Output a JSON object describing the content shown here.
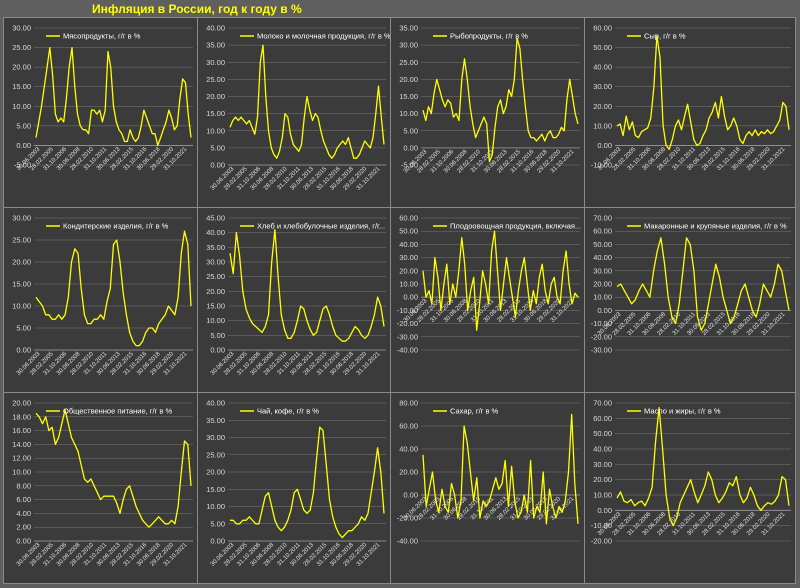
{
  "page_title": "Инфляция в России, год к году в %",
  "colors": {
    "line": "#ffff00",
    "panel": "#3b3b3b",
    "grid": "#7a7a7a",
    "background": "#5f5f5f"
  },
  "chart_data": [
    {
      "type": "line",
      "legend": "Мясопродукты, г/г в %",
      "ylim": [
        -5,
        30
      ],
      "step": 5,
      "xticks": [
        "30.06.2003",
        "28.02.2005",
        "31.10.2006",
        "30.06.2008",
        "28.02.2010",
        "31.10.2011",
        "30.06.2013",
        "28.02.2015",
        "31.10.2016",
        "30.06.2018",
        "29.02.2020",
        "31.10.2021"
      ],
      "series": [
        {
          "values": [
            2,
            6,
            10,
            15,
            20,
            25,
            18,
            8,
            6,
            7,
            6,
            12,
            20,
            25,
            15,
            8,
            5,
            4,
            4,
            3,
            9,
            9,
            8,
            9,
            6,
            9,
            24,
            20,
            10,
            6,
            4,
            3,
            1,
            1,
            4,
            2,
            1,
            2,
            5,
            9,
            7,
            5,
            3,
            3,
            0,
            2,
            4,
            6,
            9,
            7,
            4,
            5,
            12,
            17,
            16,
            8,
            2
          ]
        }
      ]
    },
    {
      "type": "line",
      "legend": "Молоко и молочная продукция, г/г в %",
      "ylim": [
        0,
        40
      ],
      "step": 5,
      "xticks": [
        "30.06.2003",
        "28.02.2005",
        "31.10.2006",
        "30.06.2008",
        "28.02.2010",
        "31.10.2011",
        "30.06.2013",
        "28.02.2015",
        "31.10.2016",
        "30.06.2018",
        "29.02.2020",
        "31.10.2021"
      ],
      "series": [
        {
          "values": [
            11,
            13,
            14,
            13,
            14,
            13,
            12,
            13,
            11,
            9,
            14,
            30,
            35,
            20,
            10,
            5,
            3,
            2,
            4,
            8,
            15,
            14,
            9,
            6,
            5,
            4,
            6,
            14,
            20,
            16,
            13,
            15,
            14,
            10,
            7,
            5,
            3,
            2,
            3,
            5,
            6,
            7,
            6,
            8,
            5,
            2,
            2,
            3,
            5,
            7,
            6,
            5,
            8,
            15,
            23,
            14,
            6
          ]
        }
      ]
    },
    {
      "type": "line",
      "legend": "Рыбопродукты, г/г в %",
      "ylim": [
        -5,
        35
      ],
      "step": 5,
      "xticks": [
        "30.06.2003",
        "28.02.2005",
        "31.10.2006",
        "30.06.2008",
        "28.02.2010",
        "31.10.2011",
        "30.06.2013",
        "28.02.2015",
        "31.10.2016",
        "30.06.2018",
        "29.02.2020",
        "31.10.2021"
      ],
      "series": [
        {
          "values": [
            11,
            8,
            12,
            10,
            16,
            20,
            17,
            14,
            12,
            14,
            13,
            9,
            10,
            8,
            20,
            26,
            20,
            12,
            7,
            3,
            5,
            7,
            9,
            7,
            -4,
            -2,
            6,
            12,
            14,
            10,
            12,
            17,
            15,
            20,
            32,
            29,
            20,
            12,
            5,
            3,
            3,
            2,
            3,
            4,
            2,
            4,
            5,
            3,
            3,
            4,
            6,
            5,
            14,
            20,
            15,
            10,
            7
          ]
        }
      ]
    },
    {
      "type": "line",
      "legend": "Сыр, г/г в %",
      "ylim": [
        -10,
        60
      ],
      "step": 10,
      "xticks": [
        "30.06.2003",
        "28.02.2005",
        "31.10.2006",
        "30.06.2008",
        "28.02.2010",
        "31.10.2011",
        "30.06.2013",
        "28.02.2015",
        "31.10.2016",
        "30.06.2018",
        "29.02.2020",
        "31.10.2021"
      ],
      "series": [
        {
          "values": [
            10,
            11,
            5,
            15,
            8,
            12,
            5,
            4,
            7,
            8,
            9,
            14,
            30,
            56,
            45,
            10,
            0,
            -2,
            3,
            10,
            13,
            8,
            15,
            21,
            12,
            3,
            0,
            1,
            5,
            8,
            14,
            17,
            22,
            14,
            25,
            15,
            8,
            10,
            14,
            10,
            3,
            1,
            5,
            7,
            5,
            8,
            5,
            7,
            6,
            8,
            6,
            7,
            10,
            13,
            22,
            20,
            8
          ]
        }
      ]
    },
    {
      "type": "line",
      "legend": "Кондитерские изделия, г/г в %",
      "ylim": [
        0,
        30
      ],
      "step": 5,
      "xticks": [
        "30.06.2003",
        "28.02.2005",
        "31.10.2006",
        "30.06.2008",
        "28.02.2010",
        "31.10.2011",
        "30.06.2013",
        "28.02.2015",
        "31.10.2016",
        "30.06.2018",
        "29.02.2020",
        "31.10.2021"
      ],
      "series": [
        {
          "values": [
            12,
            11,
            10,
            8,
            8,
            7,
            7,
            8,
            7,
            8,
            12,
            20,
            23,
            22,
            14,
            8,
            6,
            6,
            7,
            7,
            8,
            7,
            11,
            14,
            24,
            25,
            20,
            13,
            8,
            4,
            2,
            1,
            1,
            2,
            4,
            5,
            5,
            4,
            6,
            7,
            8,
            10,
            9,
            8,
            12,
            22,
            27,
            24,
            10
          ]
        }
      ]
    },
    {
      "type": "line",
      "legend": "Хлеб и хлебобулочные изделия, г/г...",
      "ylim": [
        0,
        45
      ],
      "step": 5,
      "xticks": [
        "30.06.2003",
        "28.02.2005",
        "31.10.2006",
        "30.06.2008",
        "28.02.2010",
        "31.10.2011",
        "30.06.2013",
        "28.02.2015",
        "31.10.2016",
        "30.06.2018",
        "29.02.2020",
        "31.10.2021"
      ],
      "series": [
        {
          "values": [
            33,
            26,
            40,
            32,
            20,
            14,
            11,
            9,
            8,
            7,
            6,
            8,
            12,
            30,
            41,
            25,
            12,
            7,
            4,
            4,
            6,
            10,
            15,
            14,
            10,
            7,
            5,
            6,
            10,
            14,
            15,
            12,
            8,
            5,
            4,
            3,
            3,
            4,
            6,
            8,
            7,
            5,
            4,
            5,
            8,
            12,
            18,
            15,
            8
          ]
        }
      ]
    },
    {
      "type": "line",
      "legend": "Плодоовощная продукция, включая...",
      "ylim": [
        -40,
        60
      ],
      "step": 10,
      "xticks": [
        "30.06.2003",
        "28.02.2005",
        "31.10.2006",
        "30.06.2008",
        "28.02.2010",
        "31.10.2011",
        "30.06.2013",
        "28.02.2015",
        "31.10.2016",
        "30.06.2018",
        "29.02.2020",
        "31.10.2021"
      ],
      "series": [
        {
          "values": [
            20,
            0,
            5,
            -5,
            30,
            15,
            -10,
            10,
            25,
            -5,
            10,
            0,
            20,
            45,
            25,
            -10,
            5,
            15,
            -25,
            -5,
            20,
            10,
            -5,
            35,
            50,
            20,
            -10,
            10,
            30,
            15,
            0,
            -15,
            5,
            20,
            30,
            10,
            -10,
            5,
            -5,
            15,
            25,
            5,
            -5,
            10,
            15,
            0,
            -5,
            20,
            35,
            10,
            -5,
            3,
            0
          ]
        }
      ]
    },
    {
      "type": "line",
      "legend": "Макаронные и крупяные изделия, г/г в %",
      "ylim": [
        -30,
        70
      ],
      "step": 10,
      "xticks": [
        "30.06.2003",
        "28.02.2005",
        "31.10.2006",
        "30.06.2008",
        "28.02.2010",
        "31.10.2011",
        "30.06.2013",
        "28.02.2015",
        "31.10.2016",
        "30.06.2018",
        "29.02.2020",
        "31.10.2021"
      ],
      "series": [
        {
          "values": [
            18,
            20,
            15,
            10,
            5,
            8,
            15,
            20,
            15,
            10,
            30,
            45,
            55,
            35,
            10,
            -5,
            -10,
            5,
            30,
            55,
            50,
            30,
            -5,
            -15,
            -10,
            5,
            20,
            35,
            25,
            10,
            0,
            -10,
            -5,
            5,
            15,
            20,
            10,
            0,
            -5,
            5,
            20,
            15,
            10,
            20,
            35,
            30,
            15,
            0
          ]
        }
      ]
    },
    {
      "type": "line",
      "legend": "Общественное питание, г/г в %",
      "ylim": [
        0,
        20
      ],
      "step": 2,
      "xticks": [
        "30.06.2003",
        "28.02.2005",
        "31.10.2006",
        "30.06.2008",
        "28.02.2010",
        "31.10.2011",
        "30.06.2013",
        "28.02.2015",
        "31.10.2016",
        "30.06.2018",
        "29.02.2020",
        "31.10.2021"
      ],
      "series": [
        {
          "values": [
            18.5,
            18,
            17,
            18,
            16,
            16.5,
            14,
            15,
            17,
            19,
            17,
            15,
            14,
            13,
            11,
            9,
            8.5,
            9,
            8,
            7,
            6,
            6.5,
            6.5,
            6.5,
            6.5,
            5.5,
            4,
            6,
            7.5,
            8,
            6.5,
            5,
            4,
            3,
            2.5,
            2,
            2.5,
            3,
            3.5,
            3,
            2.5,
            2.5,
            3,
            2.5,
            5,
            10,
            14.5,
            14,
            8
          ]
        }
      ]
    },
    {
      "type": "line",
      "legend": "Чай, кофе, г/г в %",
      "ylim": [
        0,
        40
      ],
      "step": 5,
      "xticks": [
        "30.06.2003",
        "28.02.2005",
        "31.10.2006",
        "30.06.2008",
        "28.02.2010",
        "31.10.2011",
        "30.06.2013",
        "28.02.2015",
        "31.10.2016",
        "30.06.2018",
        "29.02.2020",
        "31.10.2021"
      ],
      "series": [
        {
          "values": [
            6,
            6,
            5,
            5,
            6,
            6,
            7,
            6,
            5,
            5,
            9,
            13,
            14,
            10,
            6,
            4,
            3,
            4,
            6,
            9,
            14,
            15,
            12,
            9,
            8,
            9,
            14,
            24,
            33,
            32,
            22,
            12,
            7,
            4,
            2,
            1,
            2,
            3,
            3,
            4,
            5,
            7,
            6,
            8,
            14,
            20,
            27,
            20,
            8
          ]
        }
      ]
    },
    {
      "type": "line",
      "legend": "Сахар, г/г в %",
      "ylim": [
        -40,
        80
      ],
      "step": 20,
      "xticks": [
        "30.06.2003",
        "28.02.2005",
        "31.10.2006",
        "30.06.2008",
        "28.02.2010",
        "31.10.2011",
        "30.06.2013",
        "28.02.2015",
        "31.10.2016",
        "30.06.2018",
        "29.02.2020",
        "31.10.2021"
      ],
      "series": [
        {
          "values": [
            35,
            -10,
            5,
            20,
            -5,
            -15,
            5,
            -10,
            -15,
            10,
            0,
            -20,
            -5,
            60,
            45,
            20,
            -5,
            15,
            -20,
            -5,
            -10,
            -5,
            5,
            15,
            5,
            10,
            30,
            -10,
            25,
            -5,
            -20,
            -15,
            0,
            -15,
            30,
            -20,
            -10,
            -15,
            20,
            -25,
            5,
            -10,
            -20,
            -10,
            -15,
            -5,
            20,
            70,
            10,
            -25
          ]
        }
      ]
    },
    {
      "type": "line",
      "legend": "Масло и жиры, г/г в %",
      "ylim": [
        -20,
        70
      ],
      "step": 10,
      "xticks": [
        "30.06.2003",
        "28.02.2005",
        "31.10.2006",
        "30.06.2008",
        "28.02.2010",
        "31.10.2011",
        "30.06.2013",
        "28.02.2015",
        "31.10.2016",
        "30.06.2018",
        "29.02.2020",
        "31.10.2021"
      ],
      "series": [
        {
          "values": [
            8,
            12,
            6,
            5,
            7,
            3,
            5,
            6,
            3,
            8,
            15,
            45,
            67,
            40,
            10,
            -5,
            -10,
            -5,
            5,
            10,
            15,
            20,
            12,
            5,
            10,
            16,
            25,
            20,
            10,
            5,
            8,
            12,
            18,
            16,
            22,
            10,
            5,
            8,
            15,
            10,
            3,
            0,
            3,
            5,
            4,
            6,
            10,
            22,
            20,
            3
          ]
        }
      ]
    }
  ]
}
